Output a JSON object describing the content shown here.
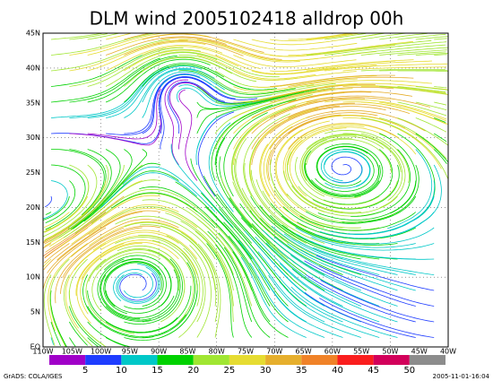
{
  "title": "DLM wind 2005102418 alldrop 00h",
  "lat_labels": [
    "EQ",
    "5N",
    "10N",
    "15N",
    "20N",
    "25N",
    "30N",
    "35N",
    "40N",
    "45N"
  ],
  "lon_labels": [
    "110W",
    "105W",
    "100W",
    "95W",
    "90W",
    "85W",
    "80W",
    "75W",
    "70W",
    "65W",
    "60W",
    "55W",
    "50W",
    "45W",
    "40W"
  ],
  "colorbar": {
    "labels": [
      5,
      10,
      15,
      20,
      25,
      30,
      35,
      40,
      45,
      50
    ],
    "colors": [
      "#a000c8",
      "#1e3cff",
      "#00c8c8",
      "#00d200",
      "#a0e632",
      "#e6dc32",
      "#e6af2d",
      "#f08228",
      "#fa1e1e",
      "#d2005a",
      "#8c8c8c"
    ]
  },
  "footer": {
    "left": "GrADS: COLA/IGES",
    "right": "2005-11-01-16:04"
  }
}
